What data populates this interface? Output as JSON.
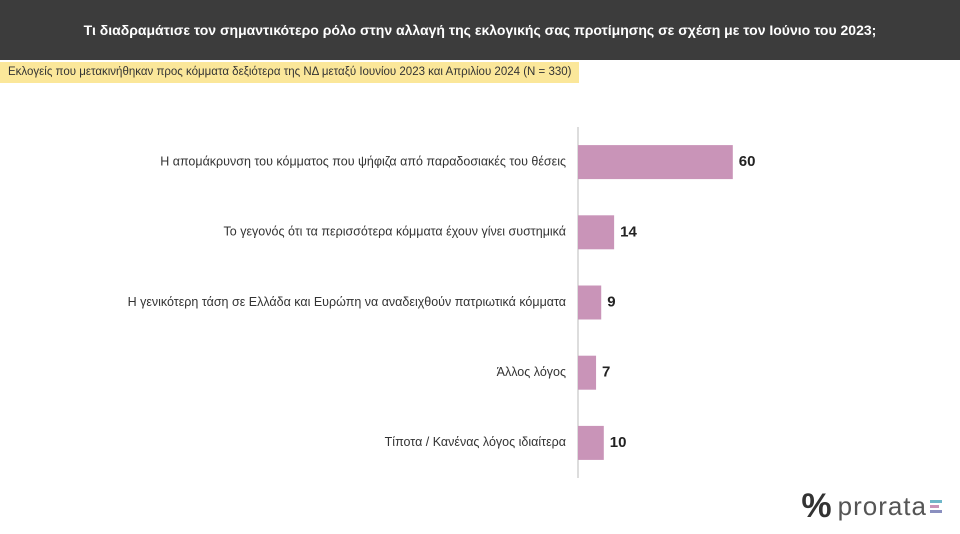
{
  "chart_data": {
    "type": "bar",
    "horizontal": true,
    "title": "Τι διαδραμάτισε τον σημαντικότερο ρόλο στην αλλαγή της εκλογικής σας προτίμησης σε σχέση με τον Ιούνιο του 2023;",
    "subtitle": "Εκλογείς που μετακινήθηκαν προς κόμματα δεξιότερα της ΝΔ μεταξύ Ιουνίου 2023 και Απριλίου 2024 (N = 330)",
    "categories": [
      "Η απομάκρυνση του κόμματος που ψήφιζα από παραδοσιακές του θέσεις",
      "Το γεγονός ότι τα περισσότερα κόμματα έχουν γίνει συστημικά",
      "Η γενικότερη τάση σε Ελλάδα και Ευρώπη να αναδειχθούν πατριωτικά κόμματα",
      "Άλλος λόγος",
      "Τίποτα / Κανένας λόγος ιδιαίτερα"
    ],
    "values": [
      60,
      14,
      9,
      7,
      10
    ],
    "color": "#c994b8"
  },
  "logo": {
    "symbol": "%",
    "name": "prorata"
  }
}
